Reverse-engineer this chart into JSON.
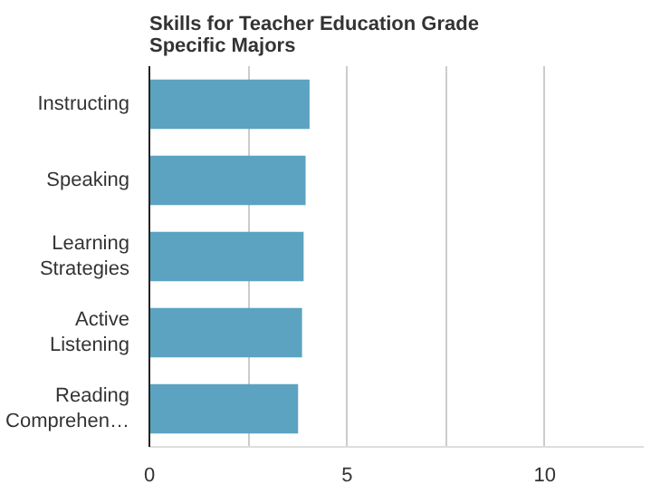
{
  "chart_data": {
    "type": "bar",
    "orientation": "horizontal",
    "title": "Skills for Teacher Education Grade Specific Majors",
    "categories": [
      "Instructing",
      "Speaking",
      "Learning Strategies",
      "Active Listening",
      "Reading Comprehen…"
    ],
    "values": [
      4.05,
      3.95,
      3.9,
      3.86,
      3.76
    ],
    "color": "#5ba3c0",
    "xlim": [
      0,
      12.5
    ],
    "xticks": [
      0,
      {
        "value": 2.5,
        "label": null
      },
      5,
      {
        "value": 7.5,
        "label": null
      },
      10
    ],
    "grid": "x"
  }
}
